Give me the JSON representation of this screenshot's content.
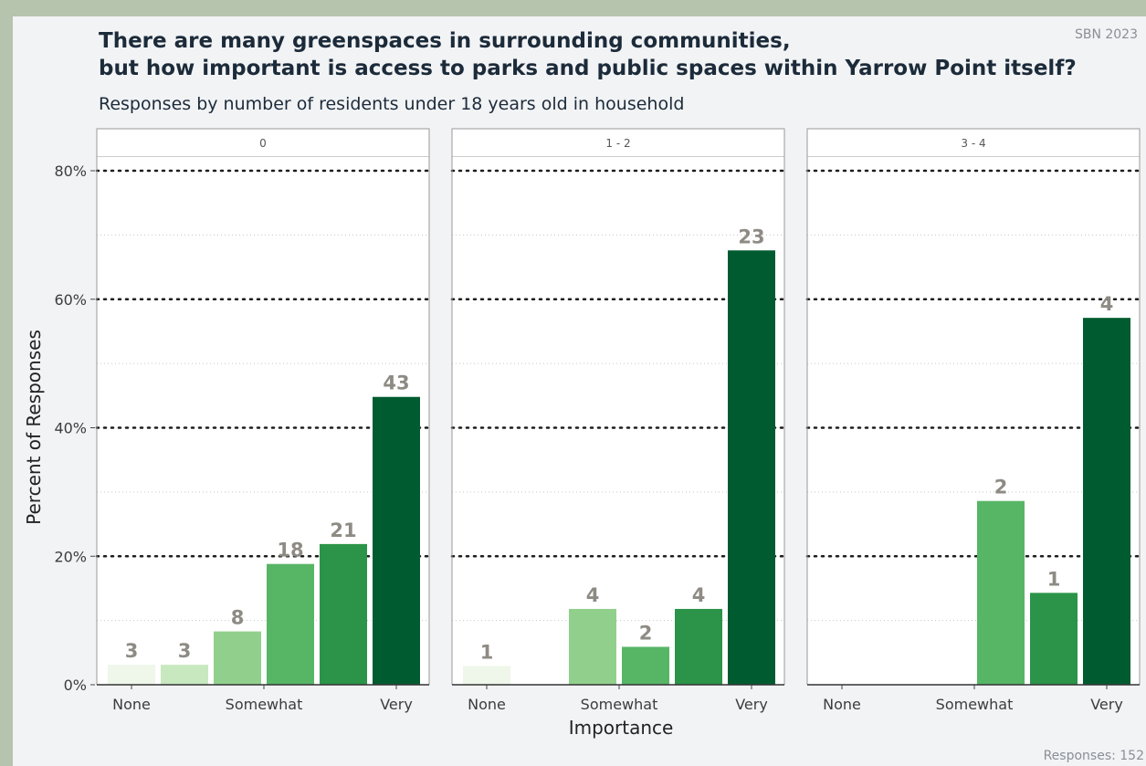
{
  "credit": "SBN 2023",
  "footer": "Responses: 152",
  "colors": {
    "levels": [
      "#eef7e9",
      "#c8e8bf",
      "#90d08c",
      "#57b566",
      "#2b9448",
      "#005c30"
    ],
    "frame": "#9a9a9a",
    "label": "#8e8b84"
  },
  "chart_data": {
    "type": "bar",
    "title_lines": [
      "There are many greenspaces in surrounding communities,",
      "but how important is access to parks and public spaces within Yarrow Point itself?"
    ],
    "subtitle": "Responses by number of residents under 18 years old in household",
    "xlabel": "Importance",
    "ylabel": "Percent of Responses",
    "ylim": [
      0,
      80
    ],
    "yticks": [
      0,
      20,
      40,
      60,
      80
    ],
    "ytick_labels": [
      "0%",
      "20%",
      "40%",
      "60%",
      "80%"
    ],
    "x_levels": [
      1,
      2,
      3,
      4,
      5,
      6
    ],
    "xtick_labels": [
      "None",
      "Somewhat",
      "Very"
    ],
    "xtick_positions": [
      1,
      3.5,
      6
    ],
    "facets": [
      {
        "label": "0",
        "bars": [
          {
            "level": 1,
            "percent": 3.1,
            "count": 3
          },
          {
            "level": 2,
            "percent": 3.1,
            "count": 3
          },
          {
            "level": 3,
            "percent": 8.3,
            "count": 8
          },
          {
            "level": 4,
            "percent": 18.8,
            "count": 18
          },
          {
            "level": 5,
            "percent": 21.9,
            "count": 21
          },
          {
            "level": 6,
            "percent": 44.8,
            "count": 43
          }
        ]
      },
      {
        "label": "1 - 2",
        "bars": [
          {
            "level": 1,
            "percent": 2.9,
            "count": 1
          },
          {
            "level": 3,
            "percent": 11.8,
            "count": 4
          },
          {
            "level": 4,
            "percent": 5.9,
            "count": 2
          },
          {
            "level": 5,
            "percent": 11.8,
            "count": 4
          },
          {
            "level": 6,
            "percent": 67.6,
            "count": 23
          }
        ]
      },
      {
        "label": "3 - 4",
        "bars": [
          {
            "level": 4,
            "percent": 28.6,
            "count": 2
          },
          {
            "level": 5,
            "percent": 14.3,
            "count": 1
          },
          {
            "level": 6,
            "percent": 57.1,
            "count": 4
          }
        ]
      }
    ]
  }
}
